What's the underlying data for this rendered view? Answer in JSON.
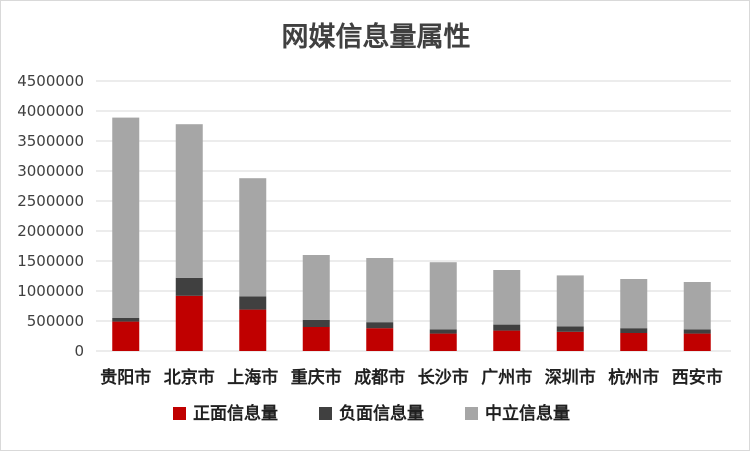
{
  "chart_data": {
    "type": "bar",
    "stacked": true,
    "title": "网媒信息量属性",
    "xlabel": "",
    "ylabel": "",
    "categories": [
      "贵阳市",
      "北京市",
      "上海市",
      "重庆市",
      "成都市",
      "长沙市",
      "广州市",
      "深圳市",
      "杭州市",
      "西安市"
    ],
    "series": [
      {
        "name": "正面信息量",
        "color": "#c00000",
        "values": [
          490000,
          920000,
          690000,
          400000,
          380000,
          290000,
          340000,
          320000,
          300000,
          290000
        ]
      },
      {
        "name": "负面信息量",
        "color": "#404040",
        "values": [
          60000,
          300000,
          220000,
          120000,
          100000,
          70000,
          100000,
          90000,
          80000,
          70000
        ]
      },
      {
        "name": "中立信息量",
        "color": "#a6a6a6",
        "values": [
          3340000,
          2560000,
          1970000,
          1080000,
          1070000,
          1120000,
          910000,
          850000,
          820000,
          790000
        ]
      }
    ],
    "ylim": [
      0,
      4500000
    ],
    "yticks": [
      "0",
      "500000",
      "1000000",
      "1500000",
      "2000000",
      "2500000",
      "3000000",
      "3500000",
      "4000000",
      "4500000"
    ],
    "grid": true,
    "legend_position": "bottom"
  }
}
